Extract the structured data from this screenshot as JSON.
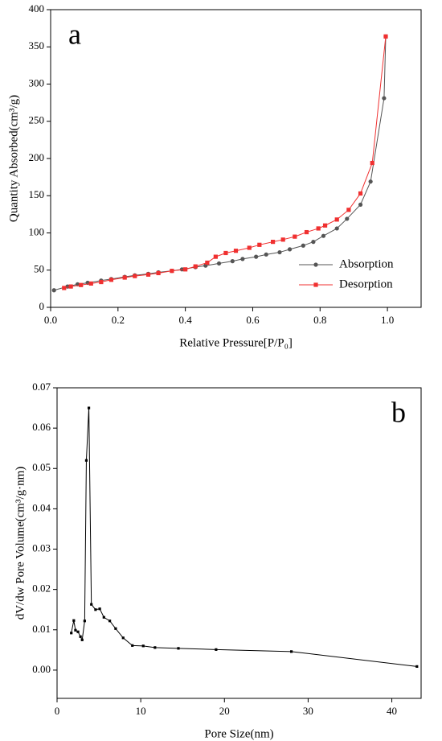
{
  "chart_data": [
    {
      "type": "line",
      "label": "a",
      "xlabel": "Relative Pressure[P/P₀]",
      "ylabel": "Quantity Absorbed(cm³/g)",
      "xlim": [
        0,
        1.1
      ],
      "ylim": [
        0,
        400
      ],
      "xticks": [
        {
          "value": 0,
          "label": "0.0"
        },
        0.2,
        0.4,
        0.6,
        0.8,
        {
          "value": 1,
          "label": "1.0"
        }
      ],
      "yticks": [
        0,
        50,
        100,
        150,
        200,
        250,
        300,
        350,
        400
      ],
      "legend": "lower right",
      "series": [
        {
          "name": "Absorption",
          "color": "#555555",
          "marker": "circle",
          "x": [
            0.01,
            0.05,
            0.08,
            0.11,
            0.15,
            0.18,
            0.22,
            0.25,
            0.29,
            0.32,
            0.36,
            0.39,
            0.43,
            0.46,
            0.5,
            0.54,
            0.57,
            0.61,
            0.64,
            0.68,
            0.71,
            0.75,
            0.78,
            0.81,
            0.85,
            0.88,
            0.92,
            0.95,
            0.99,
            0.995
          ],
          "values": [
            23,
            28,
            31,
            33,
            36,
            38,
            41,
            43,
            45,
            47,
            49,
            51,
            54,
            56,
            59,
            62,
            65,
            68,
            71,
            74,
            78,
            83,
            88,
            96,
            106,
            119,
            138,
            169,
            281,
            364
          ]
        },
        {
          "name": "Desorption",
          "color": "#f03030",
          "marker": "square",
          "x": [
            0.04,
            0.06,
            0.09,
            0.12,
            0.15,
            0.18,
            0.22,
            0.25,
            0.29,
            0.32,
            0.36,
            0.4,
            0.43,
            0.465,
            0.49,
            0.52,
            0.55,
            0.59,
            0.62,
            0.66,
            0.69,
            0.725,
            0.76,
            0.795,
            0.815,
            0.85,
            0.885,
            0.92,
            0.955,
            0.995
          ],
          "values": [
            26,
            28,
            30,
            32,
            34,
            37,
            40,
            42,
            44,
            46,
            49,
            51,
            55,
            60,
            68,
            73,
            76,
            80,
            84,
            88,
            91,
            95,
            101,
            106,
            110,
            118,
            131,
            153,
            194,
            364
          ]
        }
      ]
    },
    {
      "type": "line",
      "label": "b",
      "xlabel": "Pore Size(nm)",
      "ylabel": "dV/dw Pore Volume(cm³/g·nm)",
      "xlim": [
        0,
        43.5
      ],
      "ylim": [
        -0.007,
        0.07
      ],
      "xticks": [
        0,
        10,
        20,
        30,
        40
      ],
      "yticks": [
        {
          "value": 0,
          "label": "0.00"
        },
        0.01,
        0.02,
        0.03,
        0.04,
        0.05,
        0.06,
        0.07
      ],
      "color": "#000000",
      "marker": "square",
      "x": [
        1.7,
        2.0,
        2.2,
        2.5,
        2.8,
        3.0,
        3.3,
        3.5,
        3.8,
        4.1,
        4.6,
        5.1,
        5.6,
        6.3,
        7.0,
        7.9,
        9.0,
        10.3,
        11.7,
        14.5,
        19.0,
        28.0,
        43.0
      ],
      "values": [
        0.0092,
        0.0123,
        0.0099,
        0.0095,
        0.0083,
        0.0075,
        0.0122,
        0.052,
        0.065,
        0.0163,
        0.015,
        0.0152,
        0.0131,
        0.0122,
        0.0103,
        0.008,
        0.0061,
        0.006,
        0.0056,
        0.0054,
        0.0051,
        0.0046,
        0.0009
      ]
    }
  ]
}
